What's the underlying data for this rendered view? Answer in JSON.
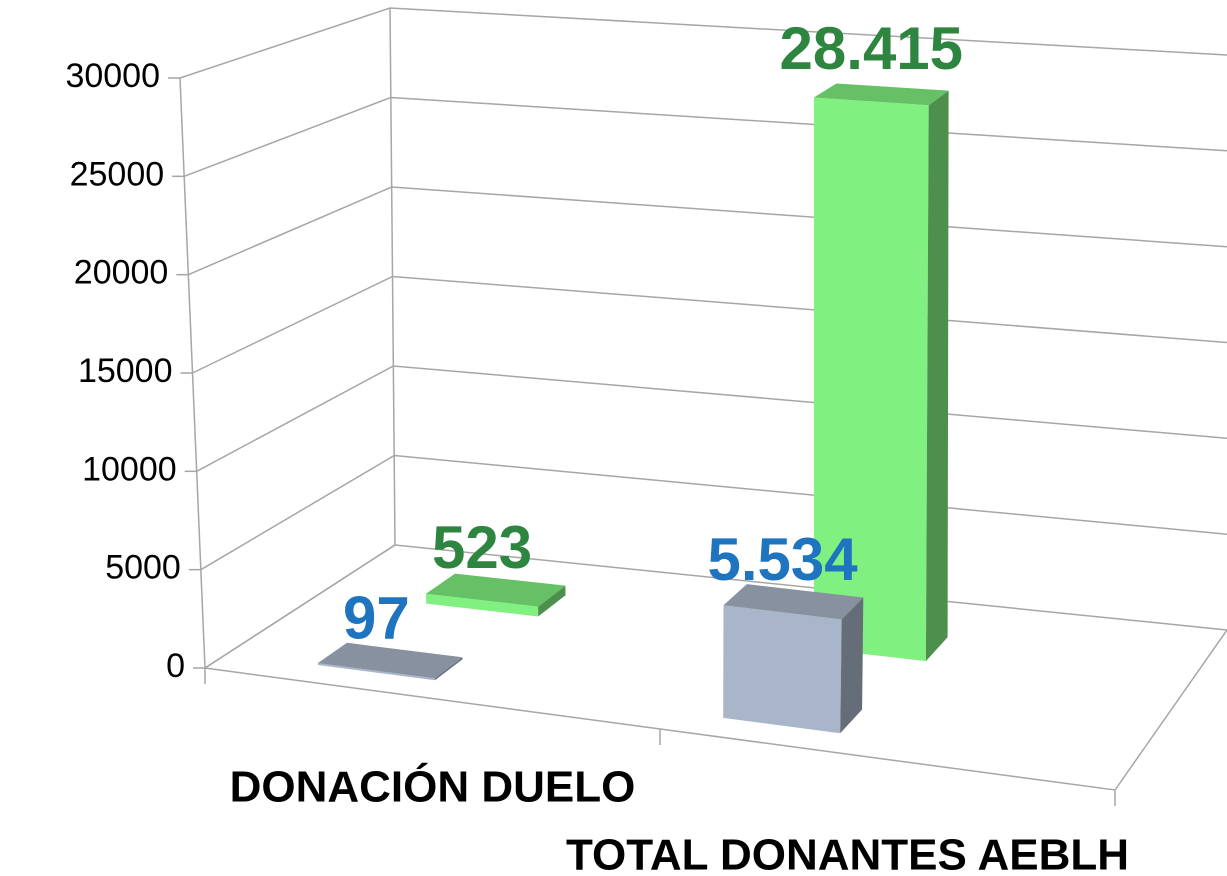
{
  "chart_data": {
    "type": "bar3d",
    "categories": [
      "DONACIÓN DUELO",
      "TOTAL DONANTES AEBLH"
    ],
    "series": [
      {
        "color": "#a9b5c8",
        "label_color": "#1f74c0",
        "values": [
          97,
          5534
        ],
        "value_labels": [
          "97",
          "5.534"
        ]
      },
      {
        "color": "#80f080",
        "label_color": "#2e8540",
        "values": [
          523,
          28415
        ],
        "value_labels": [
          "523",
          "28.415"
        ]
      }
    ],
    "ylim": [
      0,
      30000
    ],
    "yticks": [
      0,
      5000,
      10000,
      15000,
      20000,
      25000,
      30000
    ],
    "grid": true
  }
}
